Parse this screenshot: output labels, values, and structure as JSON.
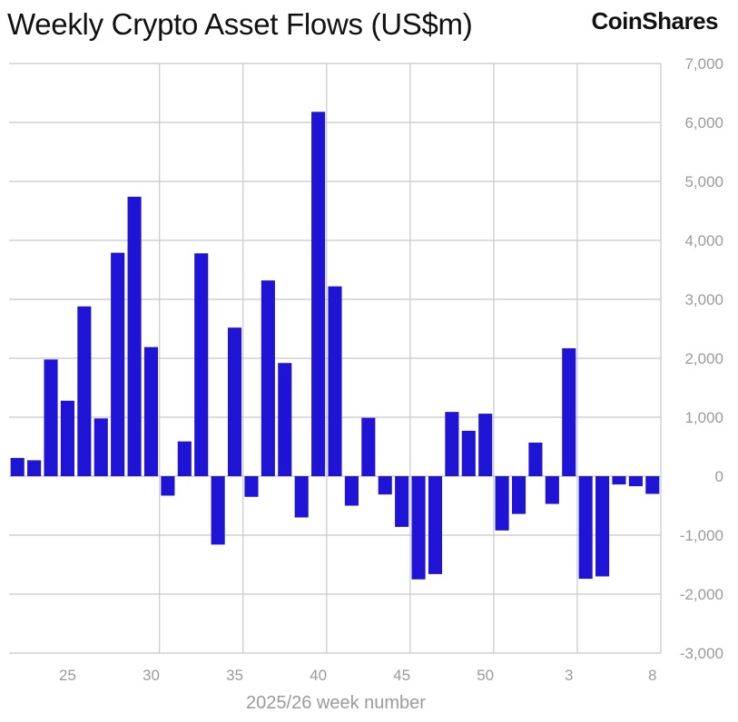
{
  "header": {
    "title": "Weekly Crypto Asset Flows (US$m)",
    "brand": "CoinShares"
  },
  "colors": {
    "bar": "#1f14d6",
    "grid": "#c8c8c8",
    "tick_text": "#9a9a9a",
    "title_text": "#111111"
  },
  "chart_data": {
    "type": "bar",
    "title": "Weekly Crypto Asset Flows (US$m)",
    "xlabel": "2025/26 week number",
    "ylabel": "",
    "ylim": [
      -3000,
      7000
    ],
    "y_ticks": [
      7000,
      6000,
      5000,
      4000,
      3000,
      2000,
      1000,
      0,
      -1000,
      -2000,
      -3000
    ],
    "y_tick_labels": [
      "7,000",
      "6,000",
      "5,000",
      "4,000",
      "3,000",
      "2,000",
      "1,000",
      "0",
      "-1,000",
      "-2,000",
      "-3,000"
    ],
    "x_tick_labels": [
      "25",
      "30",
      "35",
      "40",
      "45",
      "50",
      "3",
      "8"
    ],
    "grid": true,
    "y_axis_position": "right",
    "categories": [
      "22",
      "23",
      "24",
      "25",
      "26",
      "27",
      "28",
      "29",
      "30",
      "31",
      "32",
      "33",
      "34",
      "35",
      "36",
      "37",
      "38",
      "39",
      "40",
      "41",
      "42",
      "43",
      "44",
      "45",
      "46",
      "47",
      "48",
      "49",
      "50",
      "51",
      "52",
      "1",
      "2",
      "3",
      "4",
      "5",
      "6",
      "7",
      "8"
    ],
    "values": [
      310,
      270,
      1980,
      1280,
      2880,
      980,
      3790,
      4740,
      2190,
      -330,
      590,
      3780,
      -1160,
      2520,
      -350,
      3320,
      1920,
      -700,
      6180,
      3220,
      -500,
      990,
      -310,
      -860,
      -1750,
      -1660,
      1090,
      770,
      1060,
      -920,
      -640,
      570,
      -470,
      2170,
      -1740,
      -1700,
      -140,
      -170,
      -300
    ]
  }
}
